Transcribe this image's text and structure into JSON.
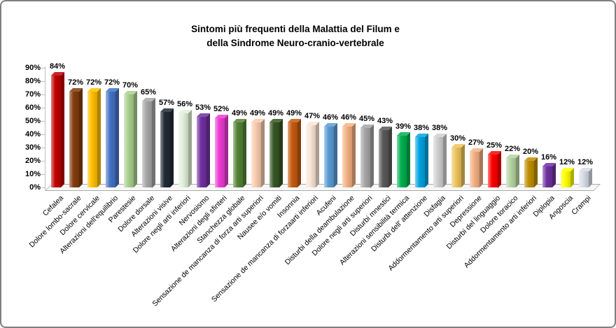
{
  "chart_data": {
    "type": "bar",
    "style": "3d-column",
    "title_lines": [
      "Sintomi più frequenti  della Malattia del Filum e",
      "della Sindrome Neuro-cranio-vertebrale"
    ],
    "title": "Sintomi più frequenti della Malattia del Filum e della Sindrome Neuro-cranio-vertebrale",
    "value_suffix": "%",
    "ylim": [
      0,
      90
    ],
    "y_tick_labels": [
      "0%",
      "10%",
      "20%",
      "30%",
      "40%",
      "50%",
      "60%",
      "70%",
      "80%",
      "90%"
    ],
    "grid": false,
    "legend": "none",
    "categories": [
      "Cefalea",
      "Dolore lombo-sacrale",
      "Dolore cervicale",
      "Alterazioni dell'equilibrio",
      "Parestesie",
      "Dolore dorsale",
      "Alterazioni visive",
      "Dolore negli arti inferiori",
      "Nervosismo",
      "Alterazioni degli sfinteri",
      "Stanchezza globale",
      "Sensazione de mancanza di forza arti superiori",
      "Nausee e/o vomiti",
      "Insonnia",
      "Sensazione de mancanza di forzaarti inferiori",
      "Acufeni",
      "Disturbi della deambulazione",
      "Dolore negli arti superiori",
      "Disturbi mnestici",
      "Alterazioni sensibilità termica",
      "Disturbi dell' attenzione",
      "Disfagia",
      "Addormentamento arti superiori",
      "Depressione",
      "Disturbi del linguaggio",
      "Dolore toracico",
      "Addormentamento arti inferiori",
      "Diplopia",
      "Angoscia",
      "Crampi"
    ],
    "values": [
      84,
      72,
      72,
      72,
      70,
      65,
      57,
      56,
      53,
      52,
      49,
      49,
      49,
      49,
      47,
      46,
      46,
      45,
      43,
      39,
      38,
      38,
      30,
      27,
      25,
      22,
      20,
      16,
      12,
      12
    ],
    "colors": [
      "#C00000",
      "#843C0C",
      "#FFC000",
      "#4472C4",
      "#A9D18E",
      "#A6A6A6",
      "#212A35",
      "#E2EFDA",
      "#7030A0",
      "#ED3BD4",
      "#548235",
      "#F8CBAD",
      "#375623",
      "#C55A11",
      "#FBE5D6",
      "#5B9BD5",
      "#F4B183",
      "#A6A6A6",
      "#595959",
      "#00B050",
      "#00A3E0",
      "#CFCFCF",
      "#EDC35C",
      "#F4B183",
      "#FF0000",
      "#B5D5A2",
      "#BF8F00",
      "#7030A0",
      "#FFFF00",
      "#D6DCE5"
    ]
  }
}
